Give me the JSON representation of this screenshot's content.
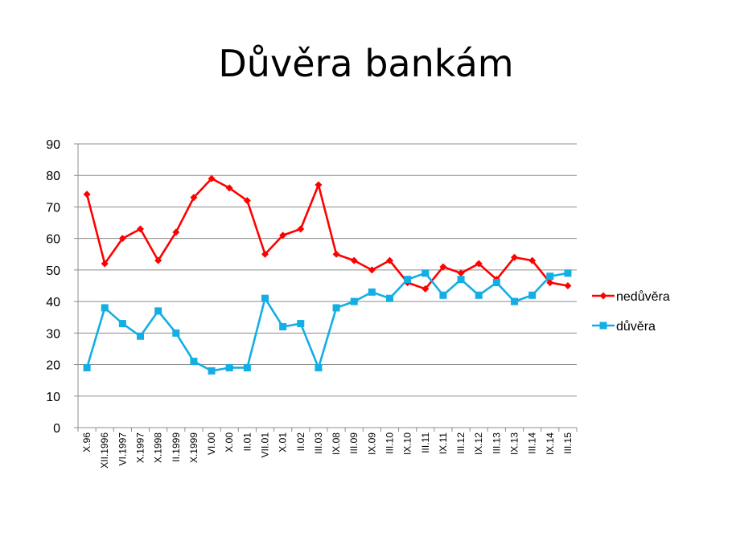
{
  "slide": {
    "title": "Důvěra bankám"
  },
  "chart_data": {
    "type": "line",
    "categories": [
      "X.96",
      "XII.1996",
      "VI.1997",
      "X.1997",
      "X.1998",
      "II.1999",
      "X.1999",
      "VI.00",
      "X.00",
      "II.01",
      "VII.01",
      "X.01",
      "II.02",
      "III.03",
      "IX.08",
      "III.09",
      "IX.09",
      "III.10",
      "IX.10",
      "III.11",
      "IX.11",
      "III.12",
      "IX.12",
      "III.13",
      "IX.13",
      "III.14",
      "IX.14",
      "III.15"
    ],
    "series": [
      {
        "name": "nedůvěra",
        "color": "#ff0000",
        "marker": "diamond",
        "values": [
          74,
          52,
          60,
          63,
          53,
          62,
          73,
          79,
          76,
          72,
          55,
          61,
          63,
          77,
          55,
          53,
          50,
          53,
          46,
          44,
          51,
          49,
          52,
          47,
          54,
          53,
          46,
          45
        ]
      },
      {
        "name": "důvěra",
        "color": "#12aee4",
        "marker": "square",
        "values": [
          19,
          38,
          33,
          29,
          37,
          30,
          21,
          18,
          19,
          19,
          41,
          32,
          33,
          19,
          38,
          40,
          43,
          41,
          47,
          49,
          42,
          47,
          42,
          46,
          40,
          42,
          48,
          49
        ]
      }
    ],
    "ylim": [
      0,
      90
    ],
    "yticks": [
      "0",
      "10",
      "20",
      "30",
      "40",
      "50",
      "60",
      "70",
      "80",
      "90"
    ],
    "grid": true,
    "legend": "right"
  }
}
